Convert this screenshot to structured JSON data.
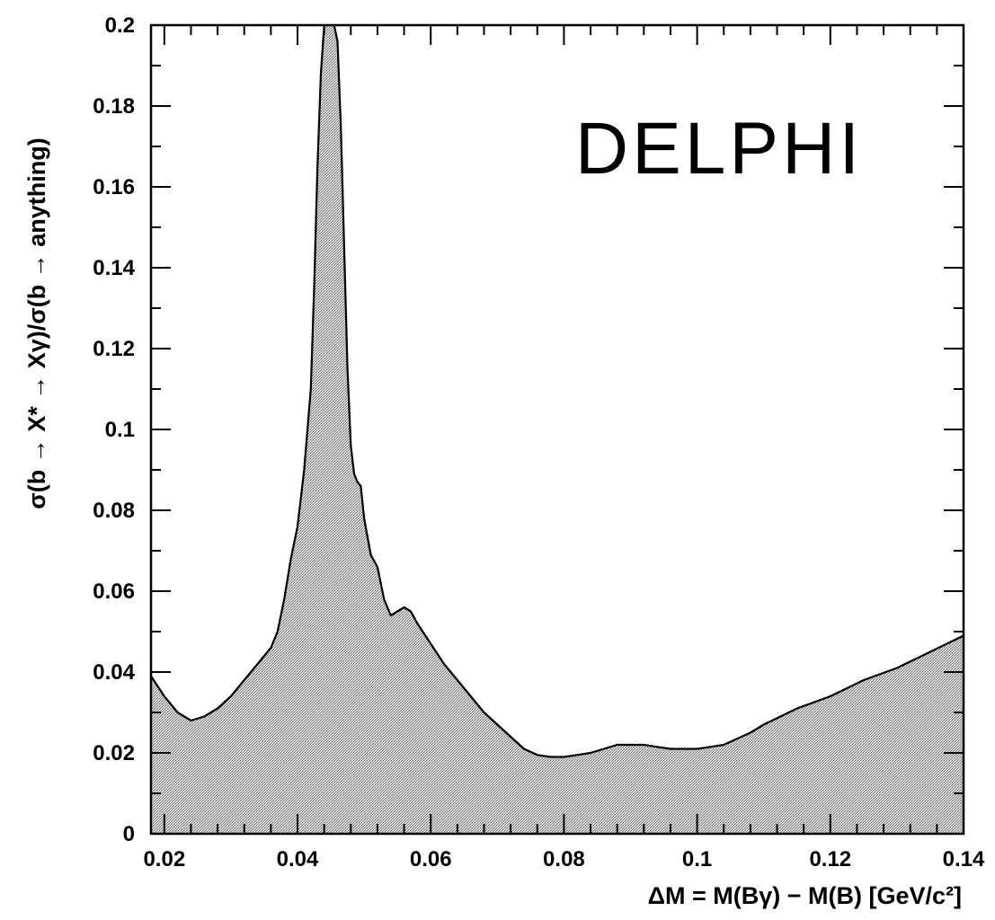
{
  "chart_data": {
    "type": "area",
    "title": "",
    "experiment_label": "DELPHI",
    "xlabel": "ΔM = M(Bγ) − M(B) [GeV/c²]",
    "ylabel": "σ(b → X* → Xγ)/σ(b → anything)",
    "xlim": [
      0.018,
      0.14
    ],
    "ylim": [
      0,
      0.2
    ],
    "x_tick_labels": [
      "0.02",
      "0.04",
      "0.06",
      "0.08",
      "0.1",
      "0.12",
      "0.14"
    ],
    "y_tick_labels": [
      "0",
      "0.02",
      "0.04",
      "0.06",
      "0.08",
      "0.1",
      "0.12",
      "0.14",
      "0.16",
      "0.18",
      "0.2"
    ],
    "grid": false,
    "fill": "stippled grey",
    "series": [
      {
        "x": [
          0.018,
          0.02,
          0.022,
          0.024,
          0.026,
          0.028,
          0.03,
          0.032,
          0.034,
          0.036,
          0.037,
          0.038,
          0.039,
          0.04,
          0.041,
          0.042,
          0.0425,
          0.043,
          0.0435,
          0.044,
          0.045,
          0.0455,
          0.046,
          0.0465,
          0.047,
          0.0475,
          0.048,
          0.0485,
          0.049,
          0.0495,
          0.05,
          0.051,
          0.052,
          0.053,
          0.054,
          0.055,
          0.056,
          0.057,
          0.058,
          0.06,
          0.062,
          0.064,
          0.066,
          0.068,
          0.07,
          0.072,
          0.074,
          0.076,
          0.078,
          0.08,
          0.082,
          0.084,
          0.086,
          0.088,
          0.09,
          0.092,
          0.094,
          0.096,
          0.098,
          0.1,
          0.102,
          0.104,
          0.106,
          0.108,
          0.11,
          0.115,
          0.12,
          0.125,
          0.13,
          0.135,
          0.14
        ],
        "y": [
          0.039,
          0.034,
          0.03,
          0.028,
          0.029,
          0.031,
          0.034,
          0.038,
          0.042,
          0.046,
          0.05,
          0.058,
          0.068,
          0.076,
          0.09,
          0.11,
          0.135,
          0.165,
          0.188,
          0.2,
          0.201,
          0.2,
          0.196,
          0.175,
          0.145,
          0.115,
          0.096,
          0.089,
          0.087,
          0.086,
          0.078,
          0.069,
          0.066,
          0.058,
          0.054,
          0.055,
          0.056,
          0.055,
          0.052,
          0.047,
          0.042,
          0.038,
          0.034,
          0.03,
          0.027,
          0.024,
          0.021,
          0.0195,
          0.019,
          0.019,
          0.0195,
          0.02,
          0.021,
          0.022,
          0.022,
          0.022,
          0.0215,
          0.021,
          0.021,
          0.021,
          0.0215,
          0.022,
          0.0235,
          0.025,
          0.027,
          0.031,
          0.034,
          0.038,
          0.041,
          0.045,
          0.049
        ]
      }
    ]
  }
}
